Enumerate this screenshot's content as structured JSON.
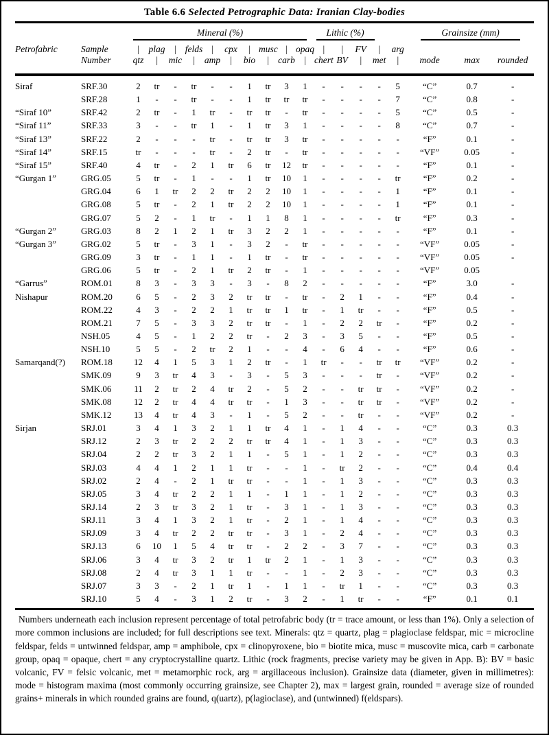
{
  "title": {
    "prefix": "Table 6.6",
    "rest": "Selected Petrographic Data: Iranian Clay-bodies"
  },
  "groups": {
    "mineral": "Mineral (%)",
    "lithic": "Lithic (%)",
    "grainsize": "Grainsize (mm)"
  },
  "header": {
    "petrofabric": "Petrofabric",
    "sample_line1": "Sample",
    "sample_line2": "Number",
    "line1": [
      "|",
      "plag",
      "|",
      "felds",
      "|",
      "cpx",
      "|",
      "musc",
      "|",
      "opaq",
      "|",
      "|",
      "FV",
      "|",
      "arg"
    ],
    "line2": [
      "qtz",
      "|",
      "mic",
      "|",
      "amp",
      "|",
      "bio",
      "|",
      "carb",
      "|",
      "chert",
      "BV",
      "|",
      "met",
      "|"
    ],
    "mode": "mode",
    "max": "max",
    "rounded": "rounded"
  },
  "columns": [
    "qtz",
    "plag",
    "mic",
    "felds",
    "amp",
    "cpx",
    "bio",
    "musc",
    "carb",
    "opaq",
    "chert",
    "BV",
    "FV",
    "met",
    "arg"
  ],
  "rows": [
    {
      "petrofabric": "Siraf",
      "sample": "SRF.30",
      "values": [
        "2",
        "tr",
        "-",
        "tr",
        "-",
        "-",
        "1",
        "tr",
        "3",
        "1",
        "-",
        "-",
        "-",
        "-",
        "5"
      ],
      "mode": "“C”",
      "max": "0.7",
      "rounded": "-"
    },
    {
      "petrofabric": "",
      "sample": "SRF.28",
      "values": [
        "1",
        "-",
        "-",
        "tr",
        "-",
        "-",
        "1",
        "tr",
        "tr",
        "tr",
        "-",
        "-",
        "-",
        "-",
        "7"
      ],
      "mode": "“C”",
      "max": "0.8",
      "rounded": "-"
    },
    {
      "petrofabric": "“Siraf 10”",
      "sample": "SRF.42",
      "values": [
        "2",
        "tr",
        "-",
        "1",
        "tr",
        "-",
        "tr",
        "tr",
        "-",
        "tr",
        "-",
        "-",
        "-",
        "-",
        "5"
      ],
      "mode": "“C”",
      "max": "0.5",
      "rounded": "-"
    },
    {
      "petrofabric": "“Siraf 11”",
      "sample": "SRF.33",
      "values": [
        "3",
        "-",
        "-",
        "tr",
        "1",
        "-",
        "1",
        "tr",
        "3",
        "1",
        "-",
        "-",
        "-",
        "-",
        "8"
      ],
      "mode": "“C”",
      "max": "0.7",
      "rounded": "-"
    },
    {
      "petrofabric": "“Siraf 13”",
      "sample": "SRF.22",
      "values": [
        "2",
        "-",
        "-",
        "-",
        "tr",
        "-",
        "tr",
        "tr",
        "3",
        "tr",
        "-",
        "-",
        "-",
        "-",
        "-"
      ],
      "mode": "“F”",
      "max": "0.1",
      "rounded": "-"
    },
    {
      "petrofabric": "“Siraf 14”",
      "sample": "SRF.15",
      "values": [
        "tr",
        "-",
        "-",
        "-",
        "tr",
        "-",
        "2",
        "tr",
        "-",
        "tr",
        "-",
        "-",
        "-",
        "-",
        "-"
      ],
      "mode": "“VF”",
      "max": "0.05",
      "rounded": "-"
    },
    {
      "petrofabric": "“Siraf 15”",
      "sample": "SRF.40",
      "values": [
        "4",
        "tr",
        "-",
        "2",
        "1",
        "tr",
        "6",
        "tr",
        "12",
        "tr",
        "-",
        "-",
        "-",
        "-",
        "-"
      ],
      "mode": "“F”",
      "max": "0.1",
      "rounded": "-"
    },
    {
      "petrofabric": "“Gurgan 1”",
      "sample": "GRG.05",
      "values": [
        "5",
        "tr",
        "-",
        "1",
        "-",
        "-",
        "1",
        "tr",
        "10",
        "1",
        "-",
        "-",
        "-",
        "-",
        "tr"
      ],
      "mode": "“F”",
      "max": "0.2",
      "rounded": "-"
    },
    {
      "petrofabric": "",
      "sample": "GRG.04",
      "values": [
        "6",
        "1",
        "tr",
        "2",
        "2",
        "tr",
        "2",
        "2",
        "10",
        "1",
        "-",
        "-",
        "-",
        "-",
        "1"
      ],
      "mode": "“F”",
      "max": "0.1",
      "rounded": "-"
    },
    {
      "petrofabric": "",
      "sample": "GRG.08",
      "values": [
        "5",
        "tr",
        "-",
        "2",
        "1",
        "tr",
        "2",
        "2",
        "10",
        "1",
        "-",
        "-",
        "-",
        "-",
        "1"
      ],
      "mode": "“F”",
      "max": "0.1",
      "rounded": "-"
    },
    {
      "petrofabric": "",
      "sample": "GRG.07",
      "values": [
        "5",
        "2",
        "-",
        "1",
        "tr",
        "-",
        "1",
        "1",
        "8",
        "1",
        "-",
        "-",
        "-",
        "-",
        "tr"
      ],
      "mode": "“F”",
      "max": "0.3",
      "rounded": "-"
    },
    {
      "petrofabric": "“Gurgan 2”",
      "sample": "GRG.03",
      "values": [
        "8",
        "2",
        "1",
        "2",
        "1",
        "tr",
        "3",
        "2",
        "2",
        "1",
        "-",
        "-",
        "-",
        "-",
        "-"
      ],
      "mode": "“F”",
      "max": "0.1",
      "rounded": "-"
    },
    {
      "petrofabric": "“Gurgan 3”",
      "sample": "GRG.02",
      "values": [
        "5",
        "tr",
        "-",
        "3",
        "1",
        "-",
        "3",
        "2",
        "-",
        "tr",
        "-",
        "-",
        "-",
        "-",
        "-"
      ],
      "mode": "“VF”",
      "max": "0.05",
      "rounded": "-"
    },
    {
      "petrofabric": "",
      "sample": "GRG.09",
      "values": [
        "3",
        "tr",
        "-",
        "1",
        "1",
        "-",
        "1",
        "tr",
        "-",
        "tr",
        "-",
        "-",
        "-",
        "-",
        "-"
      ],
      "mode": "“VF”",
      "max": "0.05",
      "rounded": "-"
    },
    {
      "petrofabric": "",
      "sample": "GRG.06",
      "values": [
        "5",
        "tr",
        "-",
        "2",
        "1",
        "tr",
        "2",
        "tr",
        "-",
        "1",
        "-",
        "-",
        "-",
        "-",
        "-"
      ],
      "mode": "“VF”",
      "max": "0.05",
      "rounded": ""
    },
    {
      "petrofabric": "“Garrus”",
      "sample": "ROM.01",
      "values": [
        "8",
        "3",
        "-",
        "3",
        "3",
        "-",
        "3",
        "-",
        "8",
        "2",
        "-",
        "-",
        "-",
        "-",
        "-"
      ],
      "mode": "“F”",
      "max": "3.0",
      "rounded": "-"
    },
    {
      "petrofabric": "Nishapur",
      "sample": "ROM.20",
      "values": [
        "6",
        "5",
        "-",
        "2",
        "3",
        "2",
        "tr",
        "tr",
        "-",
        "tr",
        "-",
        "2",
        "1",
        "-",
        "-"
      ],
      "mode": "“F”",
      "max": "0.4",
      "rounded": "-"
    },
    {
      "petrofabric": "",
      "sample": "ROM.22",
      "values": [
        "4",
        "3",
        "-",
        "2",
        "2",
        "1",
        "tr",
        "tr",
        "1",
        "tr",
        "-",
        "1",
        "tr",
        "-",
        "-"
      ],
      "mode": "“F”",
      "max": "0.5",
      "rounded": "-"
    },
    {
      "petrofabric": "",
      "sample": "ROM.21",
      "values": [
        "7",
        "5",
        "-",
        "3",
        "3",
        "2",
        "tr",
        "tr",
        "-",
        "1",
        "-",
        "2",
        "2",
        "tr",
        "-"
      ],
      "mode": "“F”",
      "max": "0.2",
      "rounded": "-"
    },
    {
      "petrofabric": "",
      "sample": "NSH.05",
      "values": [
        "4",
        "5",
        "-",
        "1",
        "2",
        "2",
        "tr",
        "-",
        "2",
        "3",
        "-",
        "3",
        "5",
        "-",
        "-"
      ],
      "mode": "“F”",
      "max": "0.5",
      "rounded": "-"
    },
    {
      "petrofabric": "",
      "sample": "NSH.10",
      "values": [
        "5",
        "5",
        "-",
        "2",
        "tr",
        "2",
        "1",
        "-",
        "-",
        "4",
        "-",
        "6",
        "4",
        "-",
        "-"
      ],
      "mode": "“F”",
      "max": "0.6",
      "rounded": "-"
    },
    {
      "petrofabric": "Samarqand(?)",
      "sample": "ROM.18",
      "values": [
        "12",
        "4",
        "1",
        "5",
        "3",
        "1",
        "2",
        "tr",
        "-",
        "1",
        "tr",
        "-",
        "-",
        "tr",
        "tr"
      ],
      "mode": "“VF”",
      "max": "0.2",
      "rounded": "-"
    },
    {
      "petrofabric": "",
      "sample": "SMK.09",
      "values": [
        "9",
        "3",
        "tr",
        "4",
        "3",
        "-",
        "3",
        "-",
        "5",
        "3",
        "-",
        "-",
        "-",
        "tr",
        "-"
      ],
      "mode": "“VF”",
      "max": "0.2",
      "rounded": "-"
    },
    {
      "petrofabric": "",
      "sample": "SMK.06",
      "values": [
        "11",
        "2",
        "tr",
        "2",
        "4",
        "tr",
        "2",
        "-",
        "5",
        "2",
        "-",
        "-",
        "tr",
        "tr",
        "-"
      ],
      "mode": "“VF”",
      "max": "0.2",
      "rounded": "-"
    },
    {
      "petrofabric": "",
      "sample": "SMK.08",
      "values": [
        "12",
        "2",
        "tr",
        "4",
        "4",
        "tr",
        "tr",
        "-",
        "1",
        "3",
        "-",
        "-",
        "tr",
        "tr",
        "-"
      ],
      "mode": "“VF”",
      "max": "0.2",
      "rounded": "-"
    },
    {
      "petrofabric": "",
      "sample": "SMK.12",
      "values": [
        "13",
        "4",
        "tr",
        "4",
        "3",
        "-",
        "1",
        "-",
        "5",
        "2",
        "-",
        "-",
        "tr",
        "-",
        "-"
      ],
      "mode": "“VF”",
      "max": "0.2",
      "rounded": "-"
    },
    {
      "petrofabric": "Sirjan",
      "sample": "SRJ.01",
      "values": [
        "3",
        "4",
        "1",
        "3",
        "2",
        "1",
        "1",
        "tr",
        "4",
        "1",
        "-",
        "1",
        "4",
        "-",
        "-"
      ],
      "mode": "“C”",
      "max": "0.3",
      "rounded": "0.3"
    },
    {
      "petrofabric": "",
      "sample": "SRJ.12",
      "values": [
        "2",
        "3",
        "tr",
        "2",
        "2",
        "2",
        "tr",
        "tr",
        "4",
        "1",
        "-",
        "1",
        "3",
        "-",
        "-"
      ],
      "mode": "“C”",
      "max": "0.3",
      "rounded": "0.3"
    },
    {
      "petrofabric": "",
      "sample": "SRJ.04",
      "values": [
        "2",
        "2",
        "tr",
        "3",
        "2",
        "1",
        "1",
        "-",
        "5",
        "1",
        "-",
        "1",
        "2",
        "-",
        "-"
      ],
      "mode": "“C”",
      "max": "0.3",
      "rounded": "0.3"
    },
    {
      "petrofabric": "",
      "sample": "SRJ.03",
      "values": [
        "4",
        "4",
        "1",
        "2",
        "1",
        "1",
        "tr",
        "-",
        "-",
        "1",
        "-",
        "tr",
        "2",
        "-",
        "-"
      ],
      "mode": "“C”",
      "max": "0.4",
      "rounded": "0.4"
    },
    {
      "petrofabric": "",
      "sample": "SRJ.02",
      "values": [
        "2",
        "4",
        "-",
        "2",
        "1",
        "tr",
        "tr",
        "-",
        "-",
        "1",
        "-",
        "1",
        "3",
        "-",
        "-"
      ],
      "mode": "“C”",
      "max": "0.3",
      "rounded": "0.3"
    },
    {
      "petrofabric": "",
      "sample": "SRJ.05",
      "values": [
        "3",
        "4",
        "tr",
        "2",
        "2",
        "1",
        "1",
        "-",
        "1",
        "1",
        "-",
        "1",
        "2",
        "-",
        "-"
      ],
      "mode": "“C”",
      "max": "0.3",
      "rounded": "0.3"
    },
    {
      "petrofabric": "",
      "sample": "SRJ.14",
      "values": [
        "2",
        "3",
        "tr",
        "3",
        "2",
        "1",
        "tr",
        "-",
        "3",
        "1",
        "-",
        "1",
        "3",
        "-",
        "-"
      ],
      "mode": "“C”",
      "max": "0.3",
      "rounded": "0.3"
    },
    {
      "petrofabric": "",
      "sample": "SRJ.11",
      "values": [
        "3",
        "4",
        "1",
        "3",
        "2",
        "1",
        "tr",
        "-",
        "2",
        "1",
        "-",
        "1",
        "4",
        "-",
        "-"
      ],
      "mode": "“C”",
      "max": "0.3",
      "rounded": "0.3"
    },
    {
      "petrofabric": "",
      "sample": "SRJ.09",
      "values": [
        "3",
        "4",
        "tr",
        "2",
        "2",
        "tr",
        "tr",
        "-",
        "3",
        "1",
        "-",
        "2",
        "4",
        "-",
        "-"
      ],
      "mode": "“C”",
      "max": "0.3",
      "rounded": "0.3"
    },
    {
      "petrofabric": "",
      "sample": "SRJ.13",
      "values": [
        "6",
        "10",
        "1",
        "5",
        "4",
        "tr",
        "tr",
        "-",
        "2",
        "2",
        "-",
        "3",
        "7",
        "-",
        "-"
      ],
      "mode": "“C”",
      "max": "0.3",
      "rounded": "0.3"
    },
    {
      "petrofabric": "",
      "sample": "SRJ.06",
      "values": [
        "3",
        "4",
        "tr",
        "3",
        "2",
        "tr",
        "1",
        "tr",
        "2",
        "1",
        "-",
        "1",
        "3",
        "-",
        "-"
      ],
      "mode": "“C”",
      "max": "0.3",
      "rounded": "0.3"
    },
    {
      "petrofabric": "",
      "sample": "SRJ.08",
      "values": [
        "2",
        "4",
        "tr",
        "3",
        "1",
        "1",
        "tr",
        "-",
        "-",
        "1",
        "-",
        "2",
        "3",
        "-",
        "-"
      ],
      "mode": "“C”",
      "max": "0.3",
      "rounded": "0.3"
    },
    {
      "petrofabric": "",
      "sample": "SRJ.07",
      "values": [
        "3",
        "3",
        "-",
        "2",
        "1",
        "tr",
        "1",
        "-",
        "1",
        "1",
        "-",
        "tr",
        "1",
        "-",
        "-"
      ],
      "mode": "“C”",
      "max": "0.3",
      "rounded": "0.3"
    },
    {
      "petrofabric": "",
      "sample": "SRJ.10",
      "values": [
        "5",
        "4",
        "-",
        "3",
        "1",
        "2",
        "tr",
        "-",
        "3",
        "2",
        "-",
        "1",
        "tr",
        "-",
        "-"
      ],
      "mode": "“F”",
      "max": "0.1",
      "rounded": "0.1"
    }
  ],
  "footnote": "Numbers underneath each inclusion represent percentage of total petrofabric body (tr = trace amount, or less than 1%). Only a selection of more common inclusions are included; for full descriptions see text. Minerals: qtz = quartz, plag = plagioclase feldspar, mic = microcline feldspar, felds = untwinned feldspar, amp = amphibole, cpx = clinopyroxene, bio = biotite mica, musc = muscovite mica, carb = carbonate group, opaq = opaque, chert = any cryptocrystalline quartz. Lithic (rock fragments, precise variety may be given in App. B): BV = basic volcanic, FV = felsic volcanic, met = metamorphic rock, arg = argillaceous inclusion). Grainsize data (diameter, given in millimetres): mode = histogram maxima (most commonly occurring grainsize, see Chapter 2), max = largest grain, rounded = average size of rounded grains+ minerals in which rounded grains are found, q(uartz), p(lagioclase), and (untwinned) f(eldspars)."
}
